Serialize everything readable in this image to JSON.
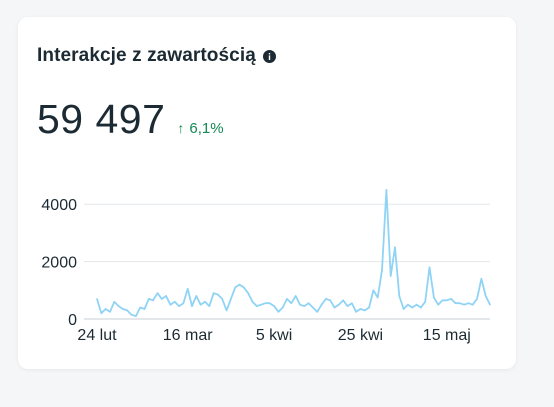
{
  "card": {
    "title": "Interakcje z zawartością",
    "info_icon": "info-icon",
    "metric_value": "59 497",
    "change_text": "6,1%",
    "change_icon": "arrow-up-icon",
    "change_color": "#138a52"
  },
  "chart_data": {
    "type": "line",
    "title": "",
    "xlabel": "",
    "ylabel": "",
    "ylim": [
      0,
      4600
    ],
    "yticks": [
      0,
      2000,
      4000
    ],
    "ytick_labels": [
      "0",
      "2000",
      "4000"
    ],
    "x_tick_labels": [
      "24 lut",
      "16 mar",
      "5 kwi",
      "25 kwi",
      "15 maj"
    ],
    "x_tick_index": [
      0,
      21,
      41,
      61,
      81
    ],
    "grid": true,
    "line_color": "#8fd3f5",
    "series": [
      {
        "values": [
          700,
          200,
          350,
          250,
          600,
          450,
          350,
          300,
          150,
          100,
          400,
          350,
          700,
          650,
          900,
          700,
          800,
          500,
          600,
          450,
          550,
          1050,
          450,
          800,
          500,
          600,
          450,
          900,
          850,
          700,
          300,
          700,
          1100,
          1200,
          1100,
          900,
          600,
          450,
          500,
          550,
          550,
          450,
          250,
          400,
          700,
          550,
          800,
          500,
          450,
          550,
          400,
          250,
          500,
          700,
          650,
          400,
          500,
          650,
          450,
          550,
          250,
          350,
          300,
          400,
          1000,
          750,
          1700,
          4500,
          1500,
          2500,
          800,
          350,
          500,
          400,
          500,
          400,
          600,
          1800,
          750,
          500,
          650,
          650,
          700,
          550,
          550,
          500,
          550,
          500,
          700,
          1400,
          800,
          500
        ]
      }
    ]
  }
}
